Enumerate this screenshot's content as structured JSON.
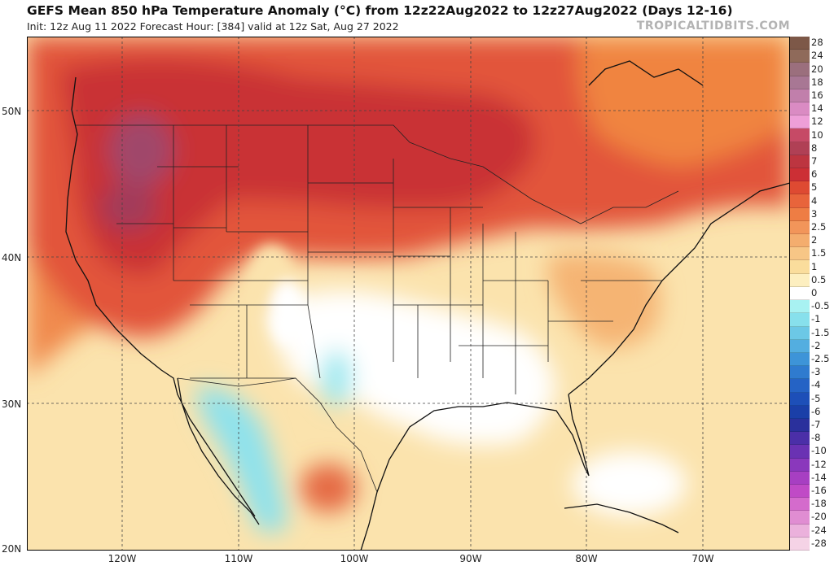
{
  "title": "GEFS Mean 850 hPa Temperature Anomaly (°C) from 12z22Aug2022 to 12z27Aug2022 (Days 12-16)",
  "subtitle": "Init: 12z Aug 11 2022   Forecast Hour: [384]   valid at 12z Sat, Aug 27 2022",
  "watermark": "TROPICALTIDBITS.COM",
  "lat_labels": [
    "50N",
    "40N",
    "30N",
    "20N"
  ],
  "lon_labels": [
    "120W",
    "110W",
    "100W",
    "90W",
    "80W",
    "70W"
  ],
  "colorbar": {
    "labels": [
      "28",
      "24",
      "20",
      "18",
      "16",
      "14",
      "12",
      "10",
      "8",
      "7",
      "6",
      "5",
      "4",
      "3",
      "2.5",
      "2",
      "1.5",
      "1",
      "0.5",
      "0",
      "-0.5",
      "-1",
      "-1.5",
      "-2",
      "-2.5",
      "-3",
      "-4",
      "-5",
      "-6",
      "-7",
      "-8",
      "-10",
      "-12",
      "-14",
      "-16",
      "-18",
      "-20",
      "-24",
      "-28"
    ],
    "colors": [
      "#7d5848",
      "#8f6a5a",
      "#9b6f7d",
      "#a87794",
      "#c17fab",
      "#da8bc3",
      "#ee9fd8",
      "#c64a66",
      "#b04055",
      "#bd3540",
      "#cc2f35",
      "#de4a32",
      "#e8643b",
      "#ee7d44",
      "#f2955a",
      "#f4ad6e",
      "#f7c686",
      "#fadd9c",
      "#fdefc0",
      "#ffffff",
      "#a8f2f2",
      "#87e0ec",
      "#6cc8e6",
      "#53aee0",
      "#3d94d8",
      "#2f7bcf",
      "#2563c5",
      "#1d4fb8",
      "#1a3fa8",
      "#2a309c",
      "#4b2fa8",
      "#6a32b3",
      "#8a38bc",
      "#a73fc2",
      "#c04ac6",
      "#d46bcc",
      "#e08dd2",
      "#ebb1dc",
      "#f5d3e6"
    ]
  },
  "map": {
    "projection": "lat-lon",
    "lon_range": [
      -128,
      -62
    ],
    "lat_range": [
      20,
      55
    ],
    "anomaly_regions": [
      {
        "region": "Pacific Northwest / Northern Rockies",
        "anomaly_c": 7
      },
      {
        "region": "Northern Plains / Upper Midwest / Southern Canada",
        "anomaly_c": 6
      },
      {
        "region": "Great Basin / California",
        "anomaly_c": 5
      },
      {
        "region": "Central Plains",
        "anomaly_c": 3
      },
      {
        "region": "Mid-Atlantic / Northeast",
        "anomaly_c": 2
      },
      {
        "region": "Southern Plains / Southeast",
        "anomaly_c": 0
      },
      {
        "region": "Southwest / Northwest Mexico",
        "anomaly_c": -1
      },
      {
        "region": "North-Central Mexico",
        "anomaly_c": 4
      },
      {
        "region": "Eastern Pacific",
        "anomaly_c": 1.5
      },
      {
        "region": "Western Atlantic",
        "anomaly_c": 1
      }
    ],
    "colors": {
      "land_border": "#111111",
      "state_border": "#222222",
      "grid": "#444444"
    }
  }
}
